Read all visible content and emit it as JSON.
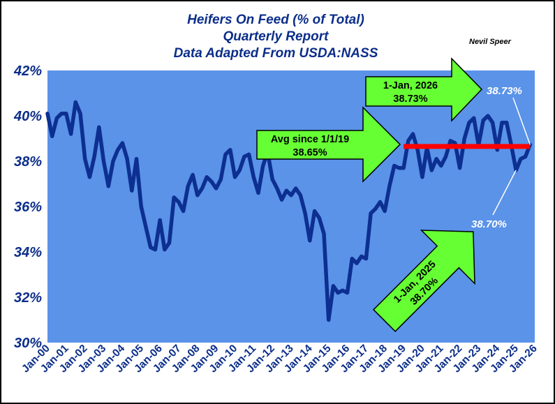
{
  "colors": {
    "plot_bg": "#5a93e8",
    "line": "#0d2f91",
    "avg_line": "#ff0000",
    "arrow_fill": "#66ff33",
    "axis_text": "#0b2e8a"
  },
  "chart_data": {
    "type": "line",
    "title": "Heifers On Feed (% of Total)",
    "subtitle_1": "Quarterly Report",
    "subtitle_2": "Data Adapted From USDA:NASS",
    "author": "Nevil Speer",
    "xlabel": "",
    "ylabel": "",
    "ylim": [
      30,
      42
    ],
    "y_ticks": [
      "30%",
      "32%",
      "34%",
      "36%",
      "38%",
      "40%",
      "42%"
    ],
    "x_ticks": [
      "Jan-00",
      "Jan-01",
      "Jan-02",
      "Jan-03",
      "Jan-04",
      "Jan-05",
      "Jan-06",
      "Jan-07",
      "Jan-08",
      "Jan-09",
      "Jan-10",
      "Jan-11",
      "Jan-12",
      "Jan-13",
      "Jan-14",
      "Jan-15",
      "Jan-16",
      "Jan-17",
      "Jan-18",
      "Jan-19",
      "Jan-20",
      "Jan-21",
      "Jan-22",
      "Jan-23",
      "Jan-24",
      "Jan-25",
      "Jan-26"
    ],
    "grid": false,
    "series": [
      {
        "x_start_year": 2000,
        "step": 0.25,
        "values": [
          40.1,
          39.1,
          39.9,
          40.1,
          40.1,
          39.2,
          40.6,
          40.1,
          38.1,
          37.3,
          38.2,
          39.5,
          38.0,
          36.9,
          38.0,
          38.5,
          38.8,
          38.1,
          36.7,
          38.1,
          36.0,
          35.1,
          34.2,
          34.1,
          35.4,
          34.1,
          34.4,
          36.4,
          36.2,
          35.8,
          36.9,
          37.4,
          36.5,
          36.8,
          37.3,
          37.1,
          36.8,
          37.2,
          38.3,
          38.5,
          37.3,
          37.6,
          38.2,
          38.3,
          37.3,
          36.6,
          37.8,
          38.4,
          37.2,
          36.8,
          36.3,
          36.7,
          36.5,
          36.8,
          36.5,
          35.7,
          34.5,
          35.8,
          35.5,
          34.8,
          31.0,
          32.5,
          32.2,
          32.3,
          32.2,
          33.7,
          33.5,
          33.8,
          33.7,
          35.7,
          35.9,
          36.2,
          35.8,
          36.9,
          37.8,
          37.7,
          37.7,
          38.9,
          39.2,
          38.5,
          37.3,
          38.6,
          37.6,
          38.1,
          37.8,
          38.2,
          38.9,
          38.8,
          37.7,
          39.0,
          39.7,
          39.9,
          38.7,
          39.8,
          40.0,
          39.7,
          38.5,
          39.7,
          39.7,
          38.7,
          37.6,
          38.1,
          38.2,
          38.73
        ]
      }
    ],
    "average": {
      "value": 38.65,
      "from": "1/1/19",
      "x_start": 2019.0,
      "x_end": 2025.75
    },
    "annotations": {
      "avg_label_1": "Avg since 1/1/19",
      "avg_label_2": "38.65%",
      "jan2026_label_1": "1-Jan, 2026",
      "jan2026_label_2": "38.73%",
      "jan2026_value": "38.73%",
      "jan2025_label_1": "1-Jan, 2025",
      "jan2025_label_2": "38.70%",
      "jan2025_value": "38.70%"
    }
  }
}
